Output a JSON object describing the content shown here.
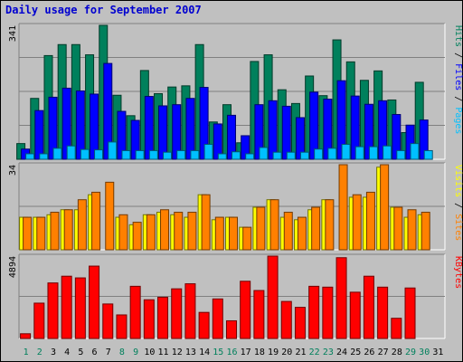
{
  "chart_data": {
    "type": "bar",
    "title": "Daily usage for September 2007",
    "categories": [
      "1",
      "2",
      "3",
      "4",
      "5",
      "6",
      "7",
      "8",
      "9",
      "10",
      "11",
      "12",
      "13",
      "14",
      "15",
      "16",
      "17",
      "18",
      "19",
      "20",
      "21",
      "22",
      "23",
      "24",
      "25",
      "26",
      "27",
      "28",
      "29",
      "30",
      "31"
    ],
    "weekend_days": [
      "1",
      "2",
      "8",
      "9",
      "15",
      "16",
      "22",
      "23",
      "29",
      "30"
    ],
    "panels": [
      {
        "name": "hits-files-pages",
        "ymax_label": "341",
        "ymax": 341,
        "series": [
          {
            "name": "Hits",
            "color": "#00805c",
            "values": [
              40,
              155,
              264,
              292,
              292,
              266,
              341,
              163,
              111,
              226,
              167,
              184,
              187,
              292,
              95,
              139,
              42,
              249,
              266,
              177,
              142,
              212,
              162,
              304,
              248,
              201,
              225,
              151,
              68,
              196,
              0
            ]
          },
          {
            "name": "Files",
            "color": "#0000ff",
            "values": [
              26,
              124,
              158,
              181,
              174,
              166,
              244,
              122,
              99,
              160,
              136,
              139,
              155,
              183,
              90,
              112,
              60,
              139,
              149,
              135,
              106,
              171,
              153,
              200,
              161,
              140,
              149,
              114,
              87,
              100,
              0
            ]
          },
          {
            "name": "Pages",
            "color": "#00c0ff",
            "values": [
              14,
              14,
              28,
              34,
              25,
              24,
              44,
              22,
              22,
              22,
              18,
              22,
              22,
              38,
              14,
              19,
              14,
              30,
              18,
              18,
              18,
              26,
              28,
              38,
              32,
              32,
              34,
              22,
              40,
              22,
              0
            ]
          }
        ],
        "legend": [
          "Pages",
          "Files",
          "Hits"
        ]
      },
      {
        "name": "visits-sites",
        "ymax_label": "34",
        "ymax": 34,
        "series": [
          {
            "name": "Visits",
            "color": "#ffff00",
            "values": [
              13,
              13,
              14,
              16,
              16,
              22,
              0,
              13,
              10,
              14,
              15,
              14,
              13,
              22,
              12,
              13,
              9,
              17,
              20,
              13,
              12,
              16,
              20,
              0,
              21,
              21,
              33,
              17,
              13,
              14,
              0
            ],
            "note": "values inferred where not distinguishable"
          },
          {
            "name": "Sites",
            "color": "#ff8000",
            "values": [
              13,
              13,
              15,
              16,
              20,
              23,
              27,
              14,
              11,
              14,
              16,
              15,
              15,
              22,
              13,
              13,
              9,
              17,
              20,
              15,
              13,
              17,
              20,
              34,
              22,
              23,
              34,
              17,
              16,
              15,
              0
            ]
          }
        ],
        "legend": [
          "Sites",
          "Visits"
        ]
      },
      {
        "name": "kbytes",
        "ymax_label": "4894",
        "ymax": 4894,
        "series": [
          {
            "name": "KBytes",
            "color": "#ff0000",
            "values": [
              280,
              2100,
              3300,
              3700,
              3600,
              4300,
              2050,
              1400,
              3100,
              2300,
              2450,
              2950,
              3250,
              1550,
              2350,
              1050,
              3400,
              2850,
              4894,
              2200,
              1850,
              3100,
              3050,
              4800,
              2750,
              3700,
              3050,
              1200,
              3000,
              0,
              0
            ]
          }
        ],
        "legend": [
          "KBytes"
        ]
      }
    ],
    "grid": true,
    "legend_position": "right-vertical"
  }
}
